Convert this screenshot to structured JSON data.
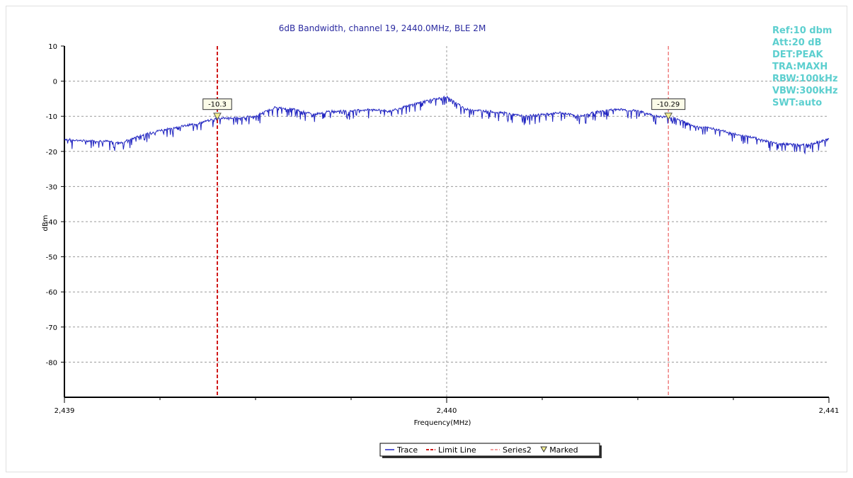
{
  "colors": {
    "trace": "#1f23c0",
    "limit_line": "#d01818",
    "series2": "#f08080",
    "grid": "#9a9a9a",
    "title": "#2a2aa0",
    "settings": "#5ccfcf",
    "marker_fill": "#f4f090"
  },
  "chart_data": {
    "type": "line",
    "title": "6dB Bandwidth,  channel 19, 2440.0MHz, BLE 2M",
    "xlabel": "Frequency(MHz)",
    "ylabel": "dBm",
    "xlim": [
      2439,
      2441
    ],
    "ylim": [
      -90,
      10
    ],
    "x_ticks": [
      {
        "value": 2439,
        "label": "2,439"
      },
      {
        "value": 2440,
        "label": "2,440"
      },
      {
        "value": 2441,
        "label": "2,441"
      }
    ],
    "x_minor_ticks": [
      2439.25,
      2439.5,
      2439.75,
      2440.25,
      2440.5,
      2440.75
    ],
    "y_ticks": [
      10,
      0,
      -10,
      -20,
      -30,
      -40,
      -50,
      -60,
      -70,
      -80
    ],
    "grid": true,
    "series": [
      {
        "name": "Trace",
        "x": [
          2439.0,
          2439.05,
          2439.1,
          2439.15,
          2439.2,
          2439.25,
          2439.3,
          2439.35,
          2439.4,
          2439.45,
          2439.5,
          2439.55,
          2439.6,
          2439.65,
          2439.7,
          2439.75,
          2439.8,
          2439.85,
          2439.9,
          2439.95,
          2440.0,
          2440.05,
          2440.1,
          2440.15,
          2440.2,
          2440.25,
          2440.3,
          2440.35,
          2440.4,
          2440.45,
          2440.5,
          2440.55,
          2440.6,
          2440.65,
          2440.7,
          2440.75,
          2440.8,
          2440.85,
          2440.9,
          2440.95,
          2441.0
        ],
        "y": [
          -16.5,
          -17,
          -17,
          -17.5,
          -15.5,
          -14,
          -13,
          -12,
          -10.5,
          -10.5,
          -10,
          -7.5,
          -8,
          -9.5,
          -8.5,
          -8.5,
          -8,
          -8.5,
          -7,
          -5.5,
          -4.5,
          -8,
          -8.5,
          -9,
          -10,
          -9.5,
          -9,
          -10,
          -8.5,
          -8,
          -8.5,
          -10,
          -10.5,
          -13,
          -13.5,
          -15,
          -16,
          -17.5,
          -18,
          -18,
          -16.5
        ]
      }
    ],
    "limit_lines": [
      {
        "name": "Limit Line",
        "x": 2439.4
      },
      {
        "name": "Series2",
        "x": 2440.58
      }
    ],
    "markers": [
      {
        "x": 2439.4,
        "y": -10.3,
        "label": "-10.3"
      },
      {
        "x": 2440.58,
        "y": -10.29,
        "label": "-10.29"
      }
    ],
    "settings": [
      "Ref:10 dbm",
      "Att:20 dB",
      "DET:PEAK",
      "TRA:MAXH",
      "RBW:100kHz",
      "VBW:300kHz",
      "SWT:auto"
    ],
    "legend": {
      "placement": "bottom-center",
      "entries": [
        {
          "label": "Trace",
          "symbol": "line"
        },
        {
          "label": "Limit Line",
          "symbol": "dash"
        },
        {
          "label": "Series2",
          "symbol": "dash-light"
        },
        {
          "label": "Marked",
          "symbol": "triangle"
        }
      ]
    }
  }
}
